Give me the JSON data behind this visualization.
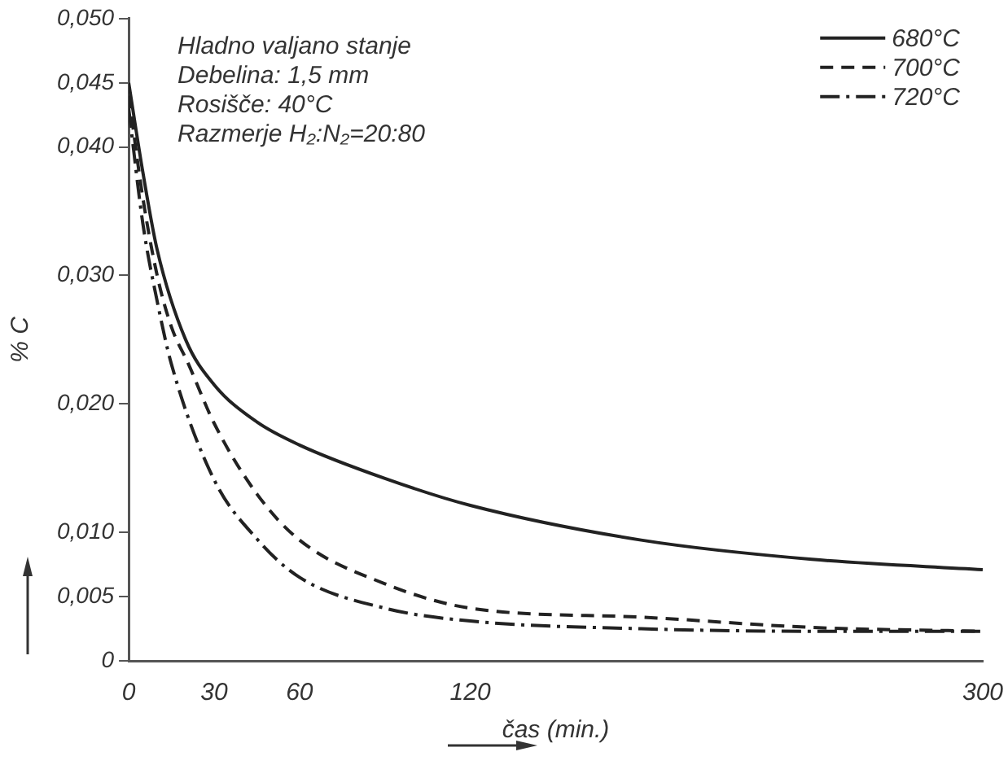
{
  "chart_data": {
    "type": "line",
    "xlabel": "čas (min.)",
    "ylabel": "% C",
    "annotations": [
      "Hladno valjano stanje",
      "Debelina: 1,5 mm",
      "Rosišče: 40°C",
      "Razmerje H₂:N₂=20:80"
    ],
    "xlim": [
      0,
      300
    ],
    "xticks": [
      0,
      30,
      60,
      120,
      300
    ],
    "ylim": [
      0,
      0.05
    ],
    "yticks": [
      {
        "value": 0,
        "label": "0"
      },
      {
        "value": 0.005,
        "label": "0,005"
      },
      {
        "value": 0.01,
        "label": "0,010"
      },
      {
        "value": 0.02,
        "label": "0,020"
      },
      {
        "value": 0.03,
        "label": "0,030"
      },
      {
        "value": 0.04,
        "label": "0,040"
      },
      {
        "value": 0.045,
        "label": "0,045"
      },
      {
        "value": 0.05,
        "label": "0,050"
      }
    ],
    "grid": false,
    "legend": "top right",
    "marker": "none",
    "series": [
      {
        "name": "680°C",
        "color": "#222222",
        "line_style": "solid",
        "x": [
          0,
          5,
          10,
          20,
          30,
          45,
          60,
          90,
          120,
          180,
          240,
          300
        ],
        "values": [
          0.045,
          0.038,
          0.032,
          0.025,
          0.0215,
          0.0186,
          0.0168,
          0.0142,
          0.0121,
          0.0094,
          0.0079,
          0.0071
        ]
      },
      {
        "name": "700°C",
        "color": "#222222",
        "line_style": "dashed",
        "x": [
          0,
          5,
          10,
          15,
          21,
          30,
          45,
          60,
          90,
          120,
          180,
          240,
          300
        ],
        "values": [
          0.044,
          0.036,
          0.03,
          0.026,
          0.0231,
          0.0185,
          0.013,
          0.0094,
          0.006,
          0.0041,
          0.0034,
          0.0026,
          0.0023
        ]
      },
      {
        "name": "720°C",
        "color": "#222222",
        "line_style": "dashdot",
        "x": [
          0,
          5,
          10,
          15,
          30,
          45,
          60,
          90,
          120,
          180,
          240,
          300
        ],
        "values": [
          0.043,
          0.034,
          0.028,
          0.0231,
          0.0141,
          0.0095,
          0.0065,
          0.0041,
          0.0031,
          0.0025,
          0.0023,
          0.0023
        ]
      }
    ]
  }
}
